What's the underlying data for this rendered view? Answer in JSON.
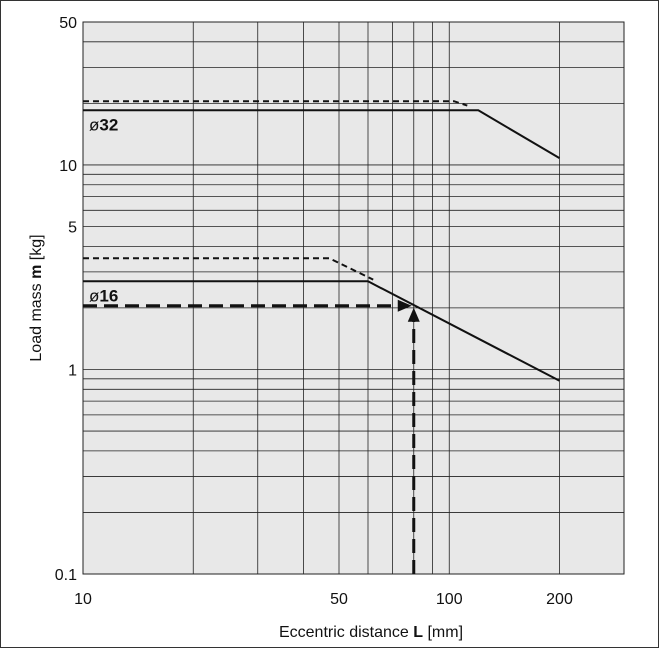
{
  "chart_data": {
    "type": "line",
    "x_scale": "log",
    "y_scale": "log",
    "xlim": [
      10,
      300
    ],
    "ylim": [
      0.1,
      50
    ],
    "grid": true,
    "xlabel": {
      "prefix": "Eccentric distance ",
      "bold": "L",
      "suffix": " [mm]"
    },
    "ylabel": {
      "prefix": "Load mass ",
      "bold": "m",
      "suffix": " [kg]"
    },
    "x_ticks": [
      {
        "value": 10,
        "label": "10"
      },
      {
        "value": 50,
        "label": "50"
      },
      {
        "value": 100,
        "label": "100"
      },
      {
        "value": 200,
        "label": "200"
      }
    ],
    "y_ticks": [
      {
        "value": 0.1,
        "label": "0.1"
      },
      {
        "value": 1,
        "label": "1"
      },
      {
        "value": 5,
        "label": "5"
      },
      {
        "value": 10,
        "label": "10"
      },
      {
        "value": 50,
        "label": "50"
      }
    ],
    "series": [
      {
        "name": "ø32",
        "style": "solid",
        "points": [
          [
            10,
            18.5
          ],
          [
            120,
            18.5
          ],
          [
            200,
            10.8
          ]
        ]
      },
      {
        "name": "",
        "style": "dashed",
        "points": [
          [
            10,
            20.5
          ],
          [
            103,
            20.5
          ],
          [
            112,
            19.5
          ]
        ]
      },
      {
        "name": "ø16",
        "style": "solid",
        "points": [
          [
            10,
            2.7
          ],
          [
            60,
            2.7
          ],
          [
            200,
            0.88
          ]
        ]
      },
      {
        "name": "",
        "style": "dashed",
        "points": [
          [
            10,
            3.5
          ],
          [
            47,
            3.5
          ],
          [
            62,
            2.75
          ]
        ]
      }
    ],
    "series_labels": [
      {
        "series": 0,
        "prefix": "ø",
        "bold": "32"
      },
      {
        "series": 2,
        "prefix": "ø",
        "bold": "16"
      }
    ],
    "example": {
      "x": 80,
      "y": 2.05
    },
    "colors": {
      "line": "#111111",
      "grid": "#222222",
      "shade": "#e8e8e8"
    }
  }
}
